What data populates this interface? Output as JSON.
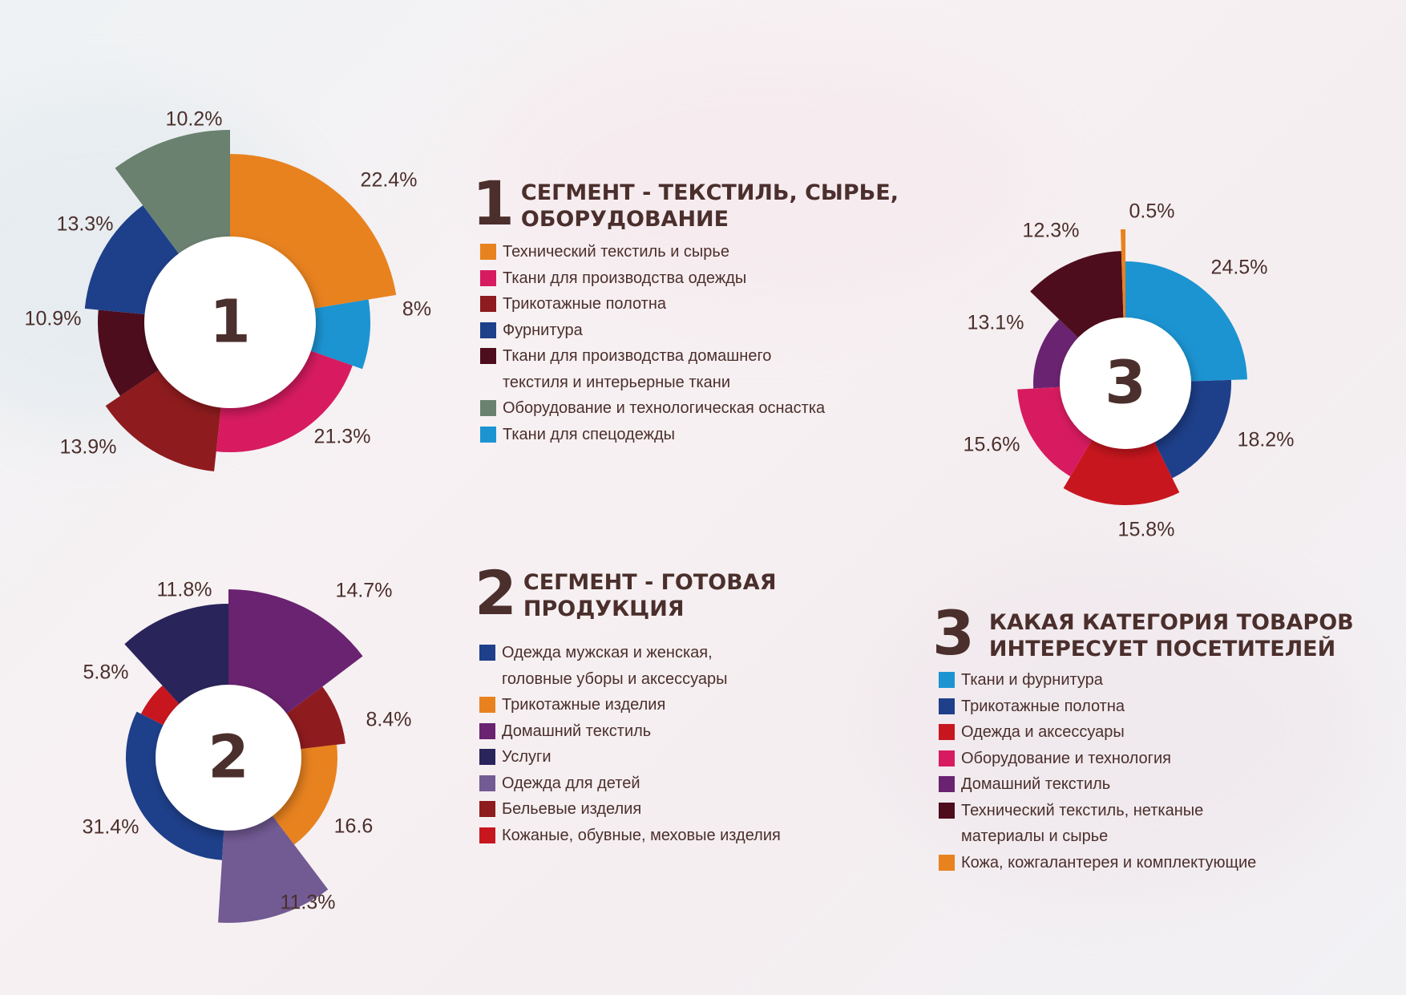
{
  "chart_data": [
    {
      "type": "pie",
      "center_label": "1",
      "heading_number": "1",
      "title": "СЕГМЕНТ - ТЕКСТИЛЬ, СЫРЬЕ,\nОБОРУДОВАНИЕ",
      "legend": [
        {
          "label": "Технический текстиль и сырье",
          "color": "#e8821f"
        },
        {
          "label": "Ткани для производства одежды",
          "color": "#d81b60"
        },
        {
          "label": "Трикотажные полотна",
          "color": "#8e1b1e"
        },
        {
          "label": "Фурнитура",
          "color": "#1e3f8a"
        },
        {
          "label": "Ткани для производства домашнего\nтекстиля и интерьерные ткани",
          "color": "#4e0d1d"
        },
        {
          "label": "Оборудование и технологическая оснастка",
          "color": "#6b8170"
        },
        {
          "label": "Ткани для спецодежды",
          "color": "#1c94d2"
        }
      ],
      "slices": [
        {
          "label": "22.4%",
          "value": 22.4,
          "color": "#e8821f"
        },
        {
          "label": "8%",
          "value": 8.0,
          "color": "#1c94d2"
        },
        {
          "label": "21.3%",
          "value": 21.3,
          "color": "#d81b60"
        },
        {
          "label": "13.9%",
          "value": 13.9,
          "color": "#8e1b1e"
        },
        {
          "label": "10.9%",
          "value": 10.9,
          "color": "#4e0d1d"
        },
        {
          "label": "13.3%",
          "value": 13.3,
          "color": "#1e3f8a"
        },
        {
          "label": "10.2%",
          "value": 10.2,
          "color": "#6b8170"
        }
      ]
    },
    {
      "type": "pie",
      "center_label": "2",
      "heading_number": "2",
      "title": "СЕГМЕНТ - ГОТОВАЯ\nПРОДУКЦИЯ",
      "legend": [
        {
          "label": "Одежда мужская и женская,\nголовные уборы и аксессуары",
          "color": "#1e3f8a"
        },
        {
          "label": "Трикотажные изделия",
          "color": "#e8821f"
        },
        {
          "label": "Домашний текстиль",
          "color": "#6a2370"
        },
        {
          "label": "Услуги",
          "color": "#29245a"
        },
        {
          "label": "Одежда для детей",
          "color": "#725a93"
        },
        {
          "label": "Бельевые изделия",
          "color": "#8e1b1e"
        },
        {
          "label": "Кожаные, обувные, меховые изделия",
          "color": "#c8161e"
        }
      ],
      "slices": [
        {
          "label": "14.7%",
          "value": 14.7,
          "color": "#6a2370"
        },
        {
          "label": "8.4%",
          "value": 8.4,
          "color": "#8e1b1e"
        },
        {
          "label": "16.6",
          "value": 16.6,
          "color": "#e8821f"
        },
        {
          "label": "11.3%",
          "value": 11.3,
          "color": "#725a93"
        },
        {
          "label": "31.4%",
          "value": 31.4,
          "color": "#1e3f8a"
        },
        {
          "label": "5.8%",
          "value": 5.8,
          "color": "#c8161e"
        },
        {
          "label": "11.8%",
          "value": 11.8,
          "color": "#29245a"
        }
      ]
    },
    {
      "type": "pie",
      "center_label": "3",
      "heading_number": "3",
      "title": "КАКАЯ КАТЕГОРИЯ ТОВАРОВ\nИНТЕРЕСУЕТ ПОСЕТИТЕЛЕЙ",
      "legend": [
        {
          "label": "Ткани и фурнитура",
          "color": "#1c94d2"
        },
        {
          "label": "Трикотажные полотна",
          "color": "#1e3f8a"
        },
        {
          "label": "Одежда и аксессуары",
          "color": "#c8161e"
        },
        {
          "label": "Оборудование и технология",
          "color": "#d81b60"
        },
        {
          "label": "Домашний текстиль",
          "color": "#6a2370"
        },
        {
          "label": "Технический текстиль, нетканые\n материалы и сырье",
          "color": "#4e0d1d"
        },
        {
          "label": "Кожа, кожгалантерея и комплектующие",
          "color": "#e8821f"
        }
      ],
      "slices": [
        {
          "label": "24.5%",
          "value": 24.5,
          "color": "#1c94d2"
        },
        {
          "label": "18.2%",
          "value": 18.2,
          "color": "#1e3f8a"
        },
        {
          "label": "15.8%",
          "value": 15.8,
          "color": "#c8161e"
        },
        {
          "label": "15.6%",
          "value": 15.6,
          "color": "#d81b60"
        },
        {
          "label": "13.1%",
          "value": 13.1,
          "color": "#6a2370"
        },
        {
          "label": "12.3%",
          "value": 12.3,
          "color": "#4e0d1d"
        },
        {
          "label": "0.5%",
          "value": 0.5,
          "color": "#e8821f"
        }
      ]
    }
  ]
}
